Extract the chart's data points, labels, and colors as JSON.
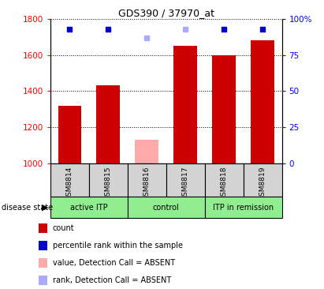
{
  "title": "GDS390 / 37970_at",
  "samples": [
    "GSM8814",
    "GSM8815",
    "GSM8816",
    "GSM8817",
    "GSM8818",
    "GSM8819"
  ],
  "bar_values": [
    1320,
    1430,
    null,
    1650,
    1600,
    1680
  ],
  "bar_color_present": "#cc0000",
  "bar_color_absent": "#ffaaaa",
  "absent_bar_values": [
    null,
    null,
    1130,
    1650,
    null,
    null
  ],
  "rank_values_present": [
    93,
    93,
    null,
    null,
    93,
    93
  ],
  "rank_values_absent": [
    null,
    null,
    87,
    93,
    null,
    null
  ],
  "ylim_left": [
    1000,
    1800
  ],
  "ylim_right": [
    0,
    100
  ],
  "yticks_left": [
    1000,
    1200,
    1400,
    1600,
    1800
  ],
  "yticks_right": [
    0,
    25,
    50,
    75,
    100
  ],
  "ytick_labels_right": [
    "0",
    "25",
    "50",
    "75",
    "100%"
  ],
  "groups": [
    {
      "label": "active ITP",
      "start": 0,
      "end": 1
    },
    {
      "label": "control",
      "start": 2,
      "end": 3
    },
    {
      "label": "ITP in remission",
      "start": 4,
      "end": 5
    }
  ],
  "group_color": "#90ee90",
  "sample_box_color": "#d3d3d3",
  "disease_state_label": "disease state",
  "legend_items": [
    {
      "label": "count",
      "color": "#cc0000"
    },
    {
      "label": "percentile rank within the sample",
      "color": "#0000cc"
    },
    {
      "label": "value, Detection Call = ABSENT",
      "color": "#ffaaaa"
    },
    {
      "label": "rank, Detection Call = ABSENT",
      "color": "#aaaaff"
    }
  ],
  "bar_width": 0.6,
  "title_fontsize": 9
}
